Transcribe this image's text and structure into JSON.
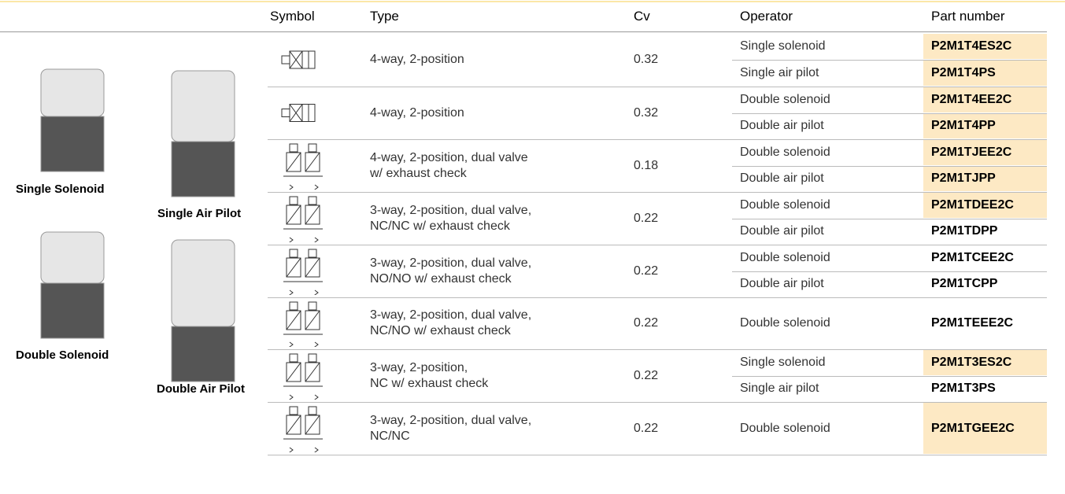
{
  "table": {
    "header": [
      "Symbol",
      "Type",
      "Cv",
      "Operator",
      "Part number"
    ],
    "images": [
      {
        "label": "Single Solenoid"
      },
      {
        "label": "Single Air Pilot"
      },
      {
        "label": "Double Solenoid"
      },
      {
        "label": "Double Air Pilot"
      }
    ],
    "rows": [
      {
        "type": [
          "4-way, 2-position"
        ],
        "cv": "0.32",
        "operators": [
          {
            "operator": "Single solenoid",
            "part": "P2M1T4ES2C",
            "highlight": true
          },
          {
            "operator": "Single air pilot",
            "part": "P2M1T4PS",
            "highlight": true
          }
        ]
      },
      {
        "type": [
          "4-way, 2-position"
        ],
        "cv": "0.32",
        "operators": [
          {
            "operator": "Double solenoid",
            "part": "P2M1T4EE2C",
            "highlight": true
          },
          {
            "operator": "Double air pilot",
            "part": "P2M1T4PP",
            "highlight": true
          }
        ]
      },
      {
        "type": [
          "4-way, 2-position, dual valve",
          "w/ exhaust check"
        ],
        "cv": "0.18",
        "operators": [
          {
            "operator": "Double solenoid",
            "part": "P2M1TJEE2C",
            "highlight": true
          },
          {
            "operator": "Double air pilot",
            "part": "P2M1TJPP",
            "highlight": true
          }
        ]
      },
      {
        "type": [
          "3-way, 2-position, dual valve,",
          "NC/NC w/ exhaust check"
        ],
        "cv": "0.22",
        "operators": [
          {
            "operator": "Double solenoid",
            "part": "P2M1TDEE2C",
            "highlight": true
          },
          {
            "operator": "Double air pilot",
            "part": "P2M1TDPP",
            "highlight": false
          }
        ]
      },
      {
        "type": [
          "3-way, 2-position, dual valve,",
          "NO/NO w/ exhaust check"
        ],
        "cv": "0.22",
        "operators": [
          {
            "operator": "Double solenoid",
            "part": "P2M1TCEE2C",
            "highlight": false
          },
          {
            "operator": "Double air pilot",
            "part": "P2M1TCPP",
            "highlight": false
          }
        ]
      },
      {
        "type": [
          "3-way, 2-position, dual valve,",
          "NC/NO w/ exhaust check"
        ],
        "cv": "0.22",
        "operators": [
          {
            "operator": "Double solenoid",
            "part": "P2M1TEEE2C",
            "highlight": false
          }
        ]
      },
      {
        "type": [
          "3-way, 2-position,",
          "NC w/ exhaust check"
        ],
        "cv": "0.22",
        "operators": [
          {
            "operator": "Single solenoid",
            "part": "P2M1T3ES2C",
            "highlight": true
          },
          {
            "operator": "Single air pilot",
            "part": "P2M1T3PS",
            "highlight": false
          }
        ]
      },
      {
        "type": [
          "3-way, 2-position, dual valve,",
          "NC/NC"
        ],
        "cv": "0.22",
        "operators": [
          {
            "operator": "Double solenoid",
            "part": "P2M1TGEE2C",
            "highlight": true
          }
        ]
      }
    ]
  }
}
